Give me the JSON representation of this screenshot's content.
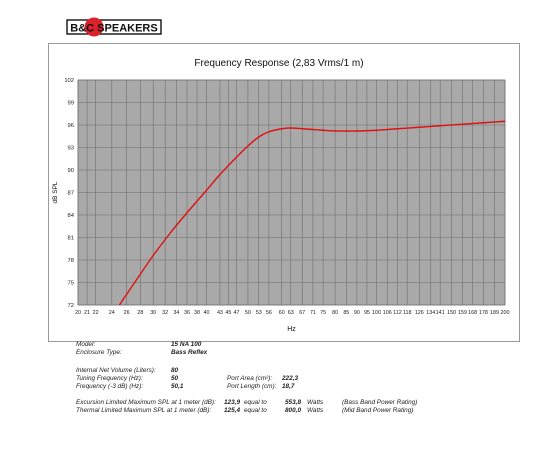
{
  "logo": {
    "text": "B&C SPEAKERS",
    "color_red": "#d9222a",
    "color_black": "#111111"
  },
  "chart_data": {
    "type": "line",
    "title": "Frequency Response (2,83 Vrms/1 m)",
    "xlabel": "Hz",
    "ylabel": "dB SPL",
    "x_scale": "log",
    "x_ticks": [
      20,
      21,
      22,
      24,
      26,
      28,
      30,
      32,
      34,
      36,
      38,
      40,
      43,
      45,
      47,
      50,
      53,
      56,
      60,
      63,
      67,
      71,
      75,
      80,
      85,
      90,
      95,
      100,
      106,
      112,
      118,
      126,
      134,
      141,
      150,
      159,
      168,
      178,
      189,
      200
    ],
    "y_ticks": [
      72,
      75,
      78,
      81,
      84,
      87,
      90,
      93,
      96,
      99,
      102
    ],
    "xlim": [
      20,
      200
    ],
    "ylim": [
      72,
      102
    ],
    "grid": true,
    "plot_bg": "#a9a9a9",
    "series": [
      {
        "color": "#e01010",
        "x": [
          25,
          27,
          30,
          33,
          36,
          40,
          43,
          47,
          50,
          53,
          56,
          60,
          63,
          67,
          71,
          75,
          80,
          85,
          90,
          100,
          112,
          126,
          141,
          159,
          178,
          200
        ],
        "y": [
          72,
          74.8,
          78.6,
          81.7,
          84.3,
          87.3,
          89.4,
          91.7,
          93.2,
          94.4,
          95.1,
          95.5,
          95.6,
          95.5,
          95.4,
          95.3,
          95.2,
          95.2,
          95.2,
          95.3,
          95.5,
          95.7,
          95.9,
          96.1,
          96.3,
          96.5
        ]
      }
    ]
  },
  "specs": {
    "model_label": "Model:",
    "model_value": "15 NA 100",
    "enclosure_label": "Enclosure Type:",
    "enclosure_value": "Bass Reflex",
    "volume_label": "Internal  Net Volume (Liters):",
    "volume_value": "80",
    "tuning_label": "Tuning Frequency (Hz):",
    "tuning_value": "50",
    "f3_label": "Frequency (-3 dB) (Hz):",
    "f3_value": "50,1",
    "port_area_label": "Port Area (cm²):",
    "port_area_value": "222,3",
    "port_length_label": "Port Length (cm):",
    "port_length_value": "18,7",
    "excursion_label": "Excursion Limited Maximum SPL at 1 meter (dB):",
    "excursion_value": "123,9",
    "excursion_equal": "equal to",
    "excursion_watts": "553,8",
    "excursion_unit": "Watts",
    "excursion_note": "(Bass Band Power Rating)",
    "thermal_label": "Thermal Limited Maximum SPL at 1 meter (dB):",
    "thermal_value": "125,4",
    "thermal_equal": "equal to",
    "thermal_watts": "800,0",
    "thermal_unit": "Watts",
    "thermal_note": "(Mid Band Power Rating)"
  }
}
